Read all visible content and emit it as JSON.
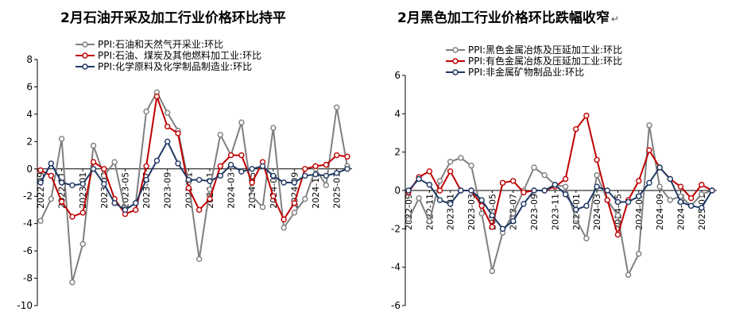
{
  "chart_data": [
    {
      "type": "line",
      "title": "2月石油开采及加工行业价格环比持平",
      "ylim": [
        -10,
        8
      ],
      "yticks": [
        -10,
        -8,
        -6,
        -4,
        -2,
        0,
        2,
        4,
        6,
        8
      ],
      "grid": false,
      "legend_position": "top-left",
      "x": [
        "2022-09",
        "2022-10",
        "2022-11",
        "2022-12",
        "2023-01",
        "2023-02",
        "2023-03",
        "2023-04",
        "2023-05",
        "2023-06",
        "2023-07",
        "2023-08",
        "2023-09",
        "2023-10",
        "2023-11",
        "2023-12",
        "2024-01",
        "2024-02",
        "2024-03",
        "2024-04",
        "2024-05",
        "2024-06",
        "2024-07",
        "2024-08",
        "2024-09",
        "2024-10",
        "2024-11",
        "2024-12",
        "2025-01",
        "2025-02"
      ],
      "xtick_labels": [
        "2022-09",
        "2022-11",
        "2023-01",
        "2023-03",
        "2023-05",
        "2023-07",
        "2023-09",
        "2023-11",
        "2024-01",
        "2024-03",
        "2024-05",
        "2024-07",
        "2024-09",
        "2024-11",
        "2025-01"
      ],
      "series": [
        {
          "name": "PPI:石油和天然气开采业:环比",
          "color": "#7f7f7f",
          "values": [
            -3.8,
            -2.2,
            2.2,
            -8.3,
            -5.5,
            1.7,
            -0.5,
            0.5,
            -3.0,
            -2.5,
            4.2,
            5.6,
            4.1,
            2.8,
            -1.0,
            -6.6,
            -1.5,
            2.5,
            1.0,
            3.4,
            -2.0,
            -2.8,
            3.0,
            -4.3,
            -3.2,
            -2.2,
            0.0,
            -1.2,
            4.5,
            0.2
          ]
        },
        {
          "name": "PPI:石油、煤炭及其他燃料加工业:环比",
          "color": "#c00000",
          "values": [
            -0.1,
            -0.5,
            -2.4,
            -3.5,
            -3.2,
            0.5,
            0.0,
            -2.2,
            -3.3,
            -3.0,
            0.2,
            5.3,
            3.1,
            2.6,
            -1.4,
            -3.0,
            -2.2,
            0.2,
            1.0,
            1.0,
            -1.0,
            0.5,
            -2.0,
            -3.7,
            -2.5,
            0.0,
            0.2,
            0.3,
            1.0,
            0.9
          ]
        },
        {
          "name": "PPI:化学原料及化学制品制造业:环比",
          "color": "#1f3864",
          "values": [
            -1.0,
            0.4,
            -1.0,
            -1.2,
            -1.1,
            0.0,
            -1.1,
            -2.5,
            -3.0,
            -2.5,
            -0.8,
            0.6,
            2.0,
            0.4,
            -0.8,
            -0.8,
            -0.9,
            -0.5,
            0.3,
            -0.2,
            0.0,
            0.2,
            -0.5,
            -1.0,
            -1.0,
            -0.5,
            -0.4,
            -0.5,
            -0.3,
            0.0
          ]
        }
      ]
    },
    {
      "type": "line",
      "title": "2月黑色加工行业价格环比跌幅收窄",
      "title_mark": "↵",
      "ylim": [
        -6,
        6
      ],
      "yticks": [
        -6,
        -4,
        -2,
        0,
        2,
        4,
        6
      ],
      "grid": false,
      "legend_position": "top-left",
      "x": [
        "2022-09",
        "2022-10",
        "2022-11",
        "2022-12",
        "2023-01",
        "2023-02",
        "2023-03",
        "2023-04",
        "2023-05",
        "2023-06",
        "2023-07",
        "2023-08",
        "2023-09",
        "2023-10",
        "2023-11",
        "2023-12",
        "2024-01",
        "2024-02",
        "2024-03",
        "2024-04",
        "2024-05",
        "2024-06",
        "2024-07",
        "2024-08",
        "2024-09",
        "2024-10",
        "2024-11",
        "2024-12",
        "2025-01",
        "2025-02"
      ],
      "xtick_labels": [
        "2022-09",
        "2022-11",
        "2023-01",
        "2023-03",
        "2023-05",
        "2023-07",
        "2023-09",
        "2023-11",
        "2024-01",
        "2024-03",
        "2024-05",
        "2024-07",
        "2024-09",
        "2024-11",
        "2025-01"
      ],
      "series": [
        {
          "name": "PPI:黑色金属冶炼及压延加工业:环比",
          "color": "#7f7f7f",
          "values": [
            -1.5,
            -0.4,
            -1.6,
            0.5,
            1.5,
            1.7,
            1.3,
            -1.2,
            -4.2,
            -2.2,
            -1.2,
            0.0,
            1.2,
            0.8,
            0.3,
            0.2,
            -1.5,
            -2.5,
            0.8,
            -0.5,
            -1.3,
            -4.4,
            -3.3,
            3.4,
            0.2,
            -0.5,
            -0.3,
            -0.8,
            -0.2,
            0.0
          ]
        },
        {
          "name": "PPI:有色金属冶炼及压延加工业:环比",
          "color": "#c00000",
          "values": [
            -0.1,
            0.7,
            1.0,
            0.0,
            1.0,
            0.0,
            0.0,
            -0.8,
            -1.9,
            0.4,
            0.5,
            -0.1,
            0.0,
            0.0,
            0.2,
            0.6,
            3.2,
            3.9,
            1.6,
            -0.5,
            -2.3,
            -0.5,
            0.5,
            2.1,
            1.2,
            0.6,
            0.2,
            -0.4,
            0.3,
            0.0
          ]
        },
        {
          "name": "PPI:非金属矿物制品业:环比",
          "color": "#1f3864",
          "values": [
            0.0,
            0.6,
            0.3,
            -0.5,
            -0.7,
            0.0,
            0.0,
            -0.5,
            -1.3,
            -2.0,
            -1.6,
            -0.7,
            0.0,
            0.0,
            0.3,
            -0.2,
            -1.0,
            -0.8,
            0.2,
            0.0,
            -0.6,
            -0.6,
            -0.3,
            0.4,
            1.2,
            0.6,
            -0.6,
            -0.8,
            -0.9,
            0.0
          ]
        }
      ]
    }
  ]
}
